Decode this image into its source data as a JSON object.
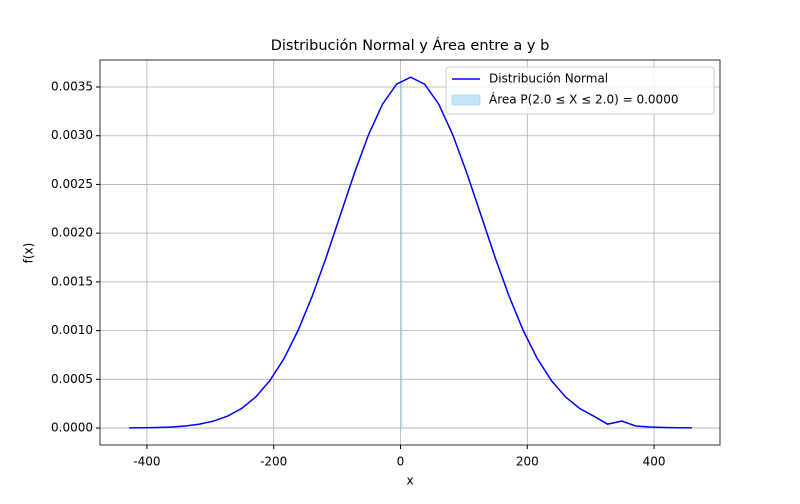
{
  "chart_data": {
    "type": "line",
    "title": "Distribución Normal y Área entre a y b",
    "xlabel": "x",
    "ylabel": "f(x)",
    "x": [
      -428,
      -405.8,
      -383.6,
      -361.4,
      -339.2,
      -317,
      -294.8,
      -272.6,
      -250.4,
      -228.2,
      -206,
      -183.8,
      -161.6,
      -139.4,
      -117.2,
      -95,
      -72.8,
      -50.6,
      -28.4,
      -6.2,
      16,
      38.2,
      60.4,
      82.6,
      104.8,
      127,
      149.2,
      171.4,
      193.6,
      215.8,
      238,
      260.2,
      282.4,
      304.6,
      326.8,
      349,
      371.2,
      393.4,
      415.6,
      437.8,
      460
    ],
    "series": [
      {
        "name": "Distribución Normal",
        "color": "#0000ff",
        "values": [
          1.2e-06,
          2.6e-06,
          5.5e-06,
          1.11e-05,
          2.15e-05,
          4e-05,
          7.14e-05,
          0.000123,
          0.000202,
          0.00032,
          0.000487,
          0.000712,
          0.001001,
          0.001351,
          0.001752,
          0.002184,
          0.002614,
          0.003007,
          0.003323,
          0.003529,
          0.0036,
          0.003529,
          0.003323,
          0.003007,
          0.002614,
          0.002184,
          0.001752,
          0.001351,
          0.001001,
          0.000712,
          0.000487,
          0.00032,
          0.000202,
          0.000123,
          4e-05,
          7.14e-05,
          2.15e-05,
          1.11e-05,
          5.5e-06,
          2.6e-06,
          1.2e-06
        ]
      }
    ],
    "shade": {
      "name": "Área P(2.0 ≤ X ≤ 2.0) = 0.0000",
      "color": "#87ceeb",
      "from": 2.0,
      "to": 2.0
    },
    "xlim": [
      -474,
      504
    ],
    "ylim": [
      -0.000174,
      0.003777
    ],
    "xticks": [
      -400,
      -200,
      0,
      200,
      400
    ],
    "yticks": [
      {
        "value": 0,
        "label": "0.0000"
      },
      {
        "value": 0.0005,
        "label": "0.0005"
      },
      {
        "value": 0.001,
        "label": "0.0010"
      },
      {
        "value": 0.0015,
        "label": "0.0015"
      },
      {
        "value": 0.002,
        "label": "0.0020"
      },
      {
        "value": 0.0025,
        "label": "0.0025"
      },
      {
        "value": 0.003,
        "label": "0.0030"
      },
      {
        "value": 0.0035,
        "label": "0.0035"
      }
    ],
    "grid": true,
    "legend": "upper right"
  }
}
